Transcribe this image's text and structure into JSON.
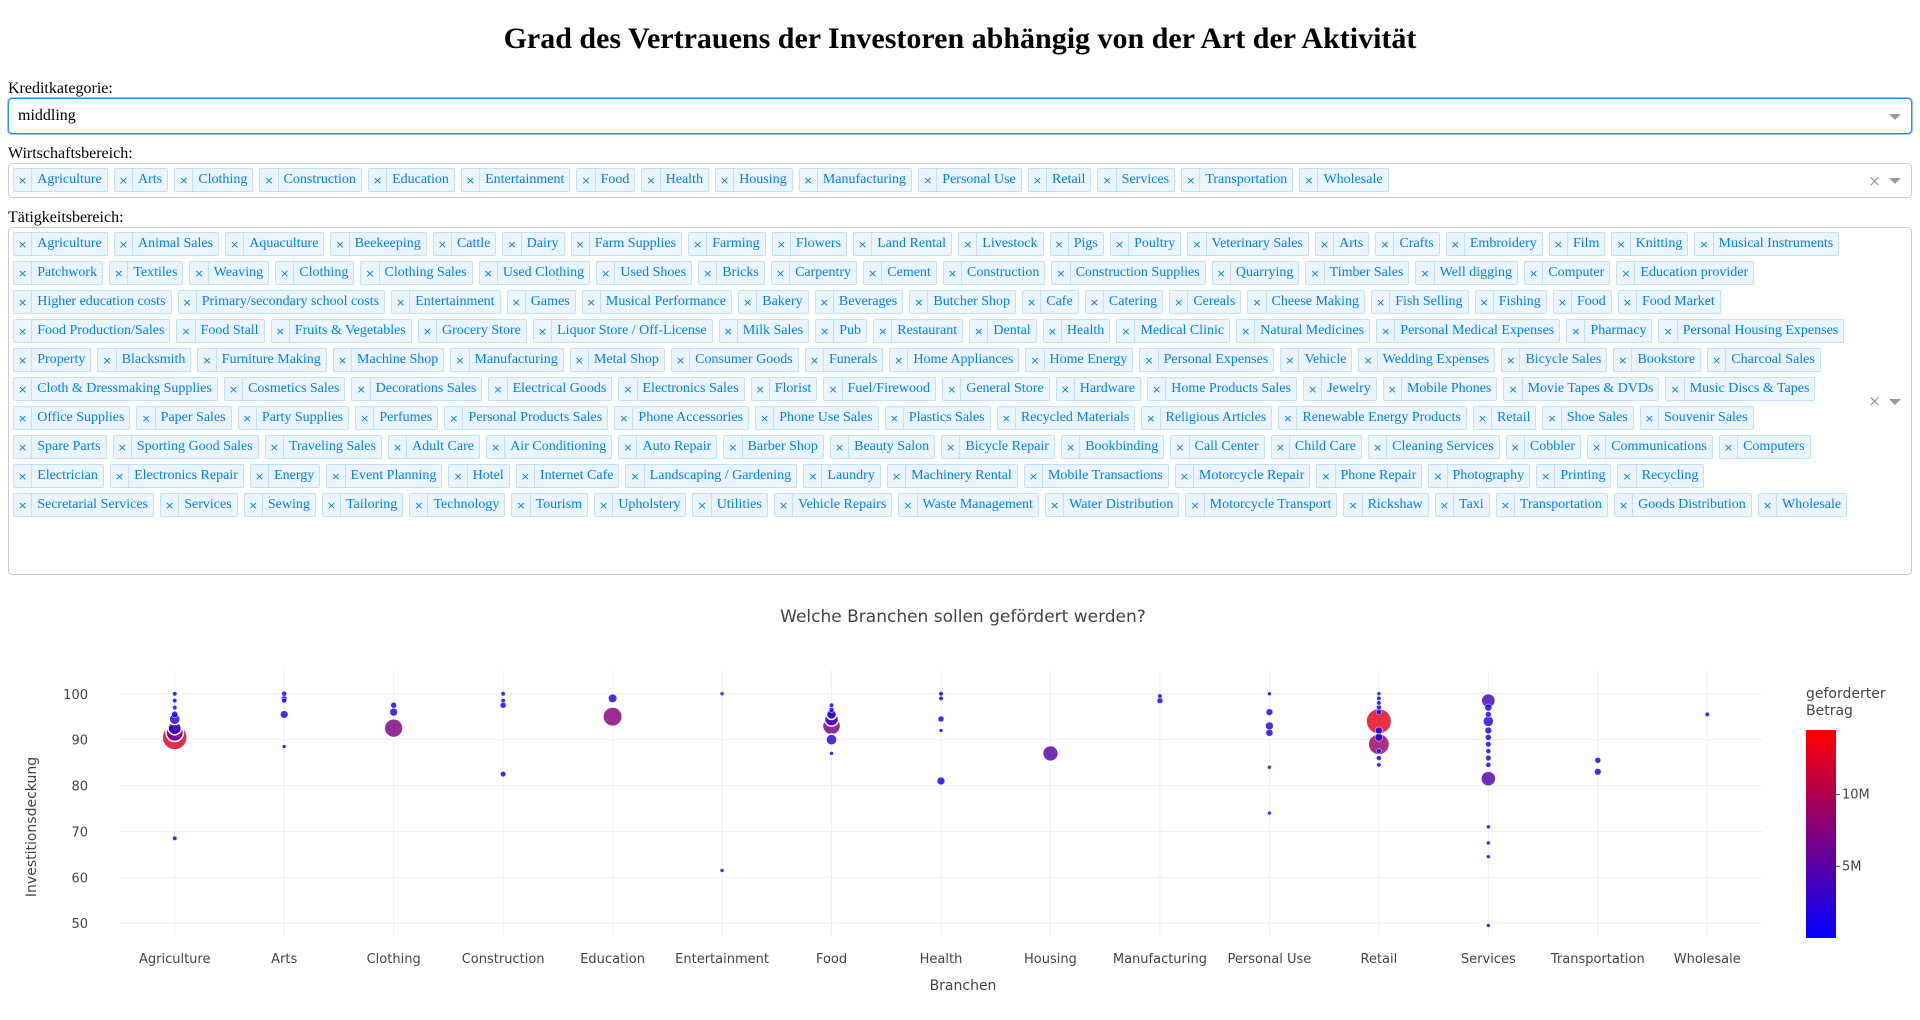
{
  "title": "Grad des Vertrauens der Investoren abhängig von der Art der Aktivität",
  "kredit": {
    "label": "Kreditkategorie:",
    "value": "middling"
  },
  "wirtschaft": {
    "label": "Wirtschaftsbereich:",
    "tags": [
      "Agriculture",
      "Arts",
      "Clothing",
      "Construction",
      "Education",
      "Entertainment",
      "Food",
      "Health",
      "Housing",
      "Manufacturing",
      "Personal Use",
      "Retail",
      "Services",
      "Transportation",
      "Wholesale"
    ]
  },
  "taetigkeit": {
    "label": "Tätigkeitsbereich:",
    "tags": [
      "Agriculture",
      "Animal Sales",
      "Aquaculture",
      "Beekeeping",
      "Cattle",
      "Dairy",
      "Farm Supplies",
      "Farming",
      "Flowers",
      "Land Rental",
      "Livestock",
      "Pigs",
      "Poultry",
      "Veterinary Sales",
      "Arts",
      "Crafts",
      "Embroidery",
      "Film",
      "Knitting",
      "Musical Instruments",
      "Patchwork",
      "Textiles",
      "Weaving",
      "Clothing",
      "Clothing Sales",
      "Used Clothing",
      "Used Shoes",
      "Bricks",
      "Carpentry",
      "Cement",
      "Construction",
      "Construction Supplies",
      "Quarrying",
      "Timber Sales",
      "Well digging",
      "Computer",
      "Education provider",
      "Higher education costs",
      "Primary/secondary school costs",
      "Entertainment",
      "Games",
      "Musical Performance",
      "Bakery",
      "Beverages",
      "Butcher Shop",
      "Cafe",
      "Catering",
      "Cereals",
      "Cheese Making",
      "Fish Selling",
      "Fishing",
      "Food",
      "Food Market",
      "Food Production/Sales",
      "Food Stall",
      "Fruits & Vegetables",
      "Grocery Store",
      "Liquor Store / Off-License",
      "Milk Sales",
      "Pub",
      "Restaurant",
      "Dental",
      "Health",
      "Medical Clinic",
      "Natural Medicines",
      "Personal Medical Expenses",
      "Pharmacy",
      "Personal Housing Expenses",
      "Property",
      "Blacksmith",
      "Furniture Making",
      "Machine Shop",
      "Manufacturing",
      "Metal Shop",
      "Consumer Goods",
      "Funerals",
      "Home Appliances",
      "Home Energy",
      "Personal Expenses",
      "Vehicle",
      "Wedding Expenses",
      "Bicycle Sales",
      "Bookstore",
      "Charcoal Sales",
      "Cloth & Dressmaking Supplies",
      "Cosmetics Sales",
      "Decorations Sales",
      "Electrical Goods",
      "Electronics Sales",
      "Florist",
      "Fuel/Firewood",
      "General Store",
      "Hardware",
      "Home Products Sales",
      "Jewelry",
      "Mobile Phones",
      "Movie Tapes & DVDs",
      "Music Discs & Tapes",
      "Office Supplies",
      "Paper Sales",
      "Party Supplies",
      "Perfumes",
      "Personal Products Sales",
      "Phone Accessories",
      "Phone Use Sales",
      "Plastics Sales",
      "Recycled Materials",
      "Religious Articles",
      "Renewable Energy Products",
      "Retail",
      "Shoe Sales",
      "Souvenir Sales",
      "Spare Parts",
      "Sporting Good Sales",
      "Traveling Sales",
      "Adult Care",
      "Air Conditioning",
      "Auto Repair",
      "Barber Shop",
      "Beauty Salon",
      "Bicycle Repair",
      "Bookbinding",
      "Call Center",
      "Child Care",
      "Cleaning Services",
      "Cobbler",
      "Communications",
      "Computers",
      "Electrician",
      "Electronics Repair",
      "Energy",
      "Event Planning",
      "Hotel",
      "Internet Cafe",
      "Landscaping / Gardening",
      "Laundry",
      "Machinery Rental",
      "Mobile Transactions",
      "Motorcycle Repair",
      "Phone Repair",
      "Photography",
      "Printing",
      "Recycling",
      "Secretarial Services",
      "Services",
      "Sewing",
      "Tailoring",
      "Technology",
      "Tourism",
      "Upholstery",
      "Utilities",
      "Vehicle Repairs",
      "Waste Management",
      "Water Distribution",
      "Motorcycle Transport",
      "Rickshaw",
      "Taxi",
      "Transportation",
      "Goods Distribution",
      "Wholesale"
    ]
  },
  "icons": {
    "clear": "×",
    "tag_remove": "×"
  },
  "chart_data": {
    "type": "scatter",
    "title": "Welche Branchen sollen gefördert werden?",
    "xlabel": "Branchen",
    "ylabel": "Investitionsdeckung",
    "categories": [
      "Agriculture",
      "Arts",
      "Clothing",
      "Construction",
      "Education",
      "Entertainment",
      "Food",
      "Health",
      "Housing",
      "Manufacturing",
      "Personal Use",
      "Retail",
      "Services",
      "Transportation",
      "Wholesale"
    ],
    "ylim": [
      47,
      103
    ],
    "yticks": [
      50,
      60,
      70,
      80,
      90,
      100
    ],
    "grid": true,
    "colorbar": {
      "title": "geforderter Betrag",
      "ticks": [
        {
          "v": 5000000,
          "label": "5M"
        },
        {
          "v": 10000000,
          "label": "10M"
        }
      ],
      "min": 0,
      "max": 14500000,
      "colors": [
        "#0000ff",
        "#ff0000"
      ]
    },
    "points": [
      {
        "x": "Agriculture",
        "y": 100,
        "v": 400000
      },
      {
        "x": "Agriculture",
        "y": 98.5,
        "v": 400000
      },
      {
        "x": "Agriculture",
        "y": 97,
        "v": 400000
      },
      {
        "x": "Agriculture",
        "y": 95.5,
        "v": 800000
      },
      {
        "x": "Agriculture",
        "y": 94.5,
        "v": 2500000
      },
      {
        "x": "Agriculture",
        "y": 92.5,
        "v": 3500000
      },
      {
        "x": "Agriculture",
        "y": 91.5,
        "v": 6000000
      },
      {
        "x": "Agriculture",
        "y": 90.5,
        "v": 12500000
      },
      {
        "x": "Agriculture",
        "y": 68.5,
        "v": 400000
      },
      {
        "x": "Arts",
        "y": 100,
        "v": 500000
      },
      {
        "x": "Arts",
        "y": 99,
        "v": 600000
      },
      {
        "x": "Arts",
        "y": 98.5,
        "v": 500000
      },
      {
        "x": "Arts",
        "y": 95.5,
        "v": 1500000
      },
      {
        "x": "Arts",
        "y": 88.5,
        "v": 300000
      },
      {
        "x": "Clothing",
        "y": 97.5,
        "v": 700000
      },
      {
        "x": "Clothing",
        "y": 96,
        "v": 1200000
      },
      {
        "x": "Clothing",
        "y": 92.5,
        "v": 7000000
      },
      {
        "x": "Construction",
        "y": 100,
        "v": 400000
      },
      {
        "x": "Construction",
        "y": 98.5,
        "v": 400000
      },
      {
        "x": "Construction",
        "y": 97.5,
        "v": 700000
      },
      {
        "x": "Construction",
        "y": 82.5,
        "v": 600000
      },
      {
        "x": "Education",
        "y": 99,
        "v": 1800000
      },
      {
        "x": "Education",
        "y": 95,
        "v": 7500000
      },
      {
        "x": "Entertainment",
        "y": 100,
        "v": 300000
      },
      {
        "x": "Entertainment",
        "y": 61.5,
        "v": 300000
      },
      {
        "x": "Food",
        "y": 97.5,
        "v": 400000
      },
      {
        "x": "Food",
        "y": 96.5,
        "v": 500000
      },
      {
        "x": "Food",
        "y": 95.5,
        "v": 2000000
      },
      {
        "x": "Food",
        "y": 94.5,
        "v": 4000000
      },
      {
        "x": "Food",
        "y": 93,
        "v": 6500000
      },
      {
        "x": "Food",
        "y": 90,
        "v": 2500000
      },
      {
        "x": "Food",
        "y": 87,
        "v": 300000
      },
      {
        "x": "Health",
        "y": 100,
        "v": 400000
      },
      {
        "x": "Health",
        "y": 99,
        "v": 400000
      },
      {
        "x": "Health",
        "y": 94.5,
        "v": 700000
      },
      {
        "x": "Health",
        "y": 92,
        "v": 300000
      },
      {
        "x": "Health",
        "y": 81,
        "v": 1200000
      },
      {
        "x": "Housing",
        "y": 87,
        "v": 5000000
      },
      {
        "x": "Manufacturing",
        "y": 99.5,
        "v": 400000
      },
      {
        "x": "Manufacturing",
        "y": 98.5,
        "v": 700000
      },
      {
        "x": "Personal Use",
        "y": 100,
        "v": 300000
      },
      {
        "x": "Personal Use",
        "y": 96,
        "v": 900000
      },
      {
        "x": "Personal Use",
        "y": 93,
        "v": 1200000
      },
      {
        "x": "Personal Use",
        "y": 91.5,
        "v": 1000000
      },
      {
        "x": "Personal Use",
        "y": 84,
        "v": 300000
      },
      {
        "x": "Personal Use",
        "y": 74,
        "v": 300000
      },
      {
        "x": "Retail",
        "y": 100,
        "v": 300000
      },
      {
        "x": "Retail",
        "y": 99,
        "v": 400000
      },
      {
        "x": "Retail",
        "y": 98,
        "v": 400000
      },
      {
        "x": "Retail",
        "y": 97,
        "v": 500000
      },
      {
        "x": "Retail",
        "y": 96,
        "v": 600000
      },
      {
        "x": "Retail",
        "y": 94,
        "v": 13000000
      },
      {
        "x": "Retail",
        "y": 92,
        "v": 1000000
      },
      {
        "x": "Retail",
        "y": 90.5,
        "v": 1200000
      },
      {
        "x": "Retail",
        "y": 89,
        "v": 9000000
      },
      {
        "x": "Retail",
        "y": 87.5,
        "v": 500000
      },
      {
        "x": "Retail",
        "y": 86,
        "v": 500000
      },
      {
        "x": "Retail",
        "y": 84.5,
        "v": 400000
      },
      {
        "x": "Services",
        "y": 98.5,
        "v": 4000000
      },
      {
        "x": "Services",
        "y": 97,
        "v": 1000000
      },
      {
        "x": "Services",
        "y": 95.5,
        "v": 700000
      },
      {
        "x": "Services",
        "y": 94,
        "v": 2500000
      },
      {
        "x": "Services",
        "y": 92,
        "v": 900000
      },
      {
        "x": "Services",
        "y": 90.5,
        "v": 700000
      },
      {
        "x": "Services",
        "y": 89,
        "v": 600000
      },
      {
        "x": "Services",
        "y": 87.5,
        "v": 500000
      },
      {
        "x": "Services",
        "y": 86,
        "v": 600000
      },
      {
        "x": "Services",
        "y": 84.5,
        "v": 500000
      },
      {
        "x": "Services",
        "y": 81.5,
        "v": 4500000
      },
      {
        "x": "Services",
        "y": 71,
        "v": 300000
      },
      {
        "x": "Services",
        "y": 67.5,
        "v": 300000
      },
      {
        "x": "Services",
        "y": 64.5,
        "v": 300000
      },
      {
        "x": "Services",
        "y": 49.5,
        "v": 300000
      },
      {
        "x": "Transportation",
        "y": 85.5,
        "v": 700000
      },
      {
        "x": "Transportation",
        "y": 83,
        "v": 900000
      },
      {
        "x": "Wholesale",
        "y": 95.5,
        "v": 400000
      }
    ]
  }
}
